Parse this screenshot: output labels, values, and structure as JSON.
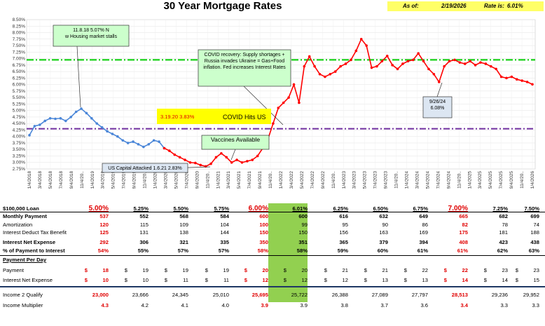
{
  "header": {
    "title": "30 Year Mortgage Rates",
    "as_of_label": "As of:",
    "as_of_value": "2/19/2026",
    "rate_label": "Rate is:",
    "rate_value": "6.01%"
  },
  "colors": {
    "blue_series": "#4a86d8",
    "red_series": "#ff0000",
    "green_line": "#00cc00",
    "purple_line": "#7030a0",
    "highlight": "#92d050",
    "callout_fill": "#ccffcc",
    "note_fill": "#ffff00"
  },
  "chart_data": {
    "type": "line",
    "ylim": [
      2.75,
      8.5
    ],
    "yticks": [
      "2.75%",
      "3.00%",
      "3.25%",
      "3.50%",
      "3.75%",
      "4.00%",
      "4.25%",
      "4.50%",
      "4.75%",
      "5.00%",
      "5.25%",
      "5.50%",
      "5.75%",
      "6.00%",
      "6.25%",
      "6.50%",
      "6.75%",
      "7.00%",
      "7.25%",
      "7.50%",
      "7.75%",
      "8.00%",
      "8.25%",
      "8.50%"
    ],
    "xticks": [
      "1/4/2018",
      "3/4/2018",
      "5/4/2018",
      "7/4/2018",
      "9/4/2018",
      "11/4/20..",
      "1/4/2019",
      "3/4/2019",
      "5/4/2019",
      "7/4/2019",
      "9/4/2019",
      "11/4/20..",
      "1/4/2020",
      "3/4/2020",
      "5/4/2020",
      "7/4/2020",
      "9/4/2020",
      "11/4/20..",
      "1/4/2021",
      "3/4/2021",
      "5/4/2021",
      "7/4/2021",
      "9/4/2021",
      "11/4/20..",
      "1/4/2022",
      "3/4/2022",
      "5/4/2022",
      "7/4/2022",
      "9/4/2022",
      "11/4/20..",
      "1/4/2023",
      "3/4/2023",
      "5/4/2023",
      "7/4/2023",
      "9/4/2023",
      "11/4/20..",
      "1/4/2024",
      "3/4/2024",
      "5/4/2024",
      "7/4/2024",
      "9/4/2024",
      "11/4/20..",
      "1/4/2025",
      "3/4/2025",
      "5/4/2025",
      "7/4/2025",
      "9/4/2025",
      "11/4/20..",
      "1/4/2026"
    ],
    "series": [
      {
        "color": "blue",
        "x": [
          0,
          1,
          2,
          3,
          4,
          5,
          6,
          7,
          8,
          9,
          10,
          11,
          12,
          13,
          14,
          15,
          16,
          17,
          18,
          19,
          20,
          21,
          22,
          23,
          24,
          25,
          26
        ],
        "y": [
          4.05,
          4.4,
          4.45,
          4.6,
          4.7,
          4.68,
          4.7,
          4.6,
          4.75,
          4.95,
          5.07,
          4.9,
          4.7,
          4.5,
          4.35,
          4.2,
          4.1,
          4.0,
          3.85,
          3.75,
          3.8,
          3.7,
          3.6,
          3.7,
          3.85,
          3.8,
          3.55
        ]
      },
      {
        "color": "red",
        "x": [
          26,
          27,
          28,
          29,
          30,
          31,
          32,
          33,
          34,
          35,
          36,
          37,
          38,
          39,
          40,
          41,
          42,
          43,
          44,
          45,
          46,
          47,
          48,
          49,
          50,
          51,
          52,
          53,
          54,
          55,
          56,
          57,
          58,
          59,
          60,
          61,
          62,
          63,
          64,
          65,
          66,
          67,
          68,
          69,
          70,
          71,
          72,
          73,
          74,
          75,
          76,
          77,
          78,
          79,
          80,
          81,
          82,
          83,
          84,
          85,
          86,
          87,
          88,
          89,
          90,
          91,
          92,
          93,
          94,
          95,
          96,
          97
        ],
        "y": [
          3.55,
          3.45,
          3.3,
          3.2,
          3.1,
          3.0,
          2.98,
          2.9,
          2.85,
          2.95,
          3.2,
          3.35,
          3.2,
          3.0,
          3.1,
          3.0,
          3.05,
          3.1,
          3.25,
          3.55,
          3.9,
          4.5,
          5.1,
          5.3,
          5.5,
          6.0,
          5.3,
          6.7,
          7.08,
          6.7,
          6.4,
          6.3,
          6.4,
          6.5,
          6.7,
          6.8,
          6.95,
          7.3,
          7.75,
          7.5,
          6.65,
          6.7,
          6.9,
          7.1,
          6.75,
          6.6,
          6.8,
          6.9,
          6.95,
          7.2,
          6.9,
          6.6,
          6.4,
          6.1,
          6.7,
          6.9,
          6.95,
          6.85,
          6.8,
          6.9,
          6.75,
          6.85,
          6.8,
          6.7,
          6.6,
          6.3,
          6.25,
          6.3,
          6.2,
          6.15,
          6.1,
          6.01
        ]
      }
    ],
    "reference_lines": [
      {
        "label": "",
        "y": 6.95,
        "color": "green"
      },
      {
        "label": "",
        "y": 4.3,
        "color": "purple"
      }
    ],
    "annotations": [
      {
        "text": "11.8.18 5.07% New Housing market stalls"
      },
      {
        "text": "COVID recovery: Supply shortages + Russia invades Ukraine = Gas+Food inflation. Fed increases Interest Rates"
      },
      {
        "text": "3.19.20 3.83%"
      },
      {
        "text": "COVID Hits US"
      },
      {
        "text": "Vaccines Available"
      },
      {
        "text": "US Capital Attacked 1.6.21 2.83%"
      },
      {
        "text": "9/26/24 6.08%"
      }
    ]
  },
  "table": {
    "loan_label": "$100,000 Loan",
    "rates": [
      "5.00%",
      "5.25%",
      "5.50%",
      "5.75%",
      "6.00%",
      "6.01%",
      "6.25%",
      "6.50%",
      "6.75%",
      "7.00%",
      "7.25%",
      "7.50%"
    ],
    "rows": [
      {
        "label": "Monthly Payment",
        "bold": true,
        "values": [
          "537",
          "552",
          "568",
          "584",
          "600",
          "600",
          "616",
          "632",
          "649",
          "665",
          "682",
          "699"
        ]
      },
      {
        "label": "Amortization",
        "bold": false,
        "values": [
          "120",
          "115",
          "109",
          "104",
          "100",
          "99",
          "95",
          "90",
          "86",
          "82",
          "78",
          "74"
        ]
      },
      {
        "label": "Interest Deduct Tax Benefit",
        "bold": false,
        "values": [
          "125",
          "131",
          "138",
          "144",
          "150",
          "150",
          "156",
          "163",
          "169",
          "175",
          "181",
          "188"
        ]
      },
      {
        "label": "Interest Net Expense",
        "bold": true,
        "values": [
          "292",
          "306",
          "321",
          "335",
          "350",
          "351",
          "365",
          "379",
          "394",
          "408",
          "423",
          "438"
        ]
      },
      {
        "label": "% of Payment to Interest",
        "bold": true,
        "values": [
          "54%",
          "55%",
          "57%",
          "57%",
          "58%",
          "58%",
          "59%",
          "60%",
          "61%",
          "61%",
          "62%",
          "63%"
        ]
      }
    ],
    "per_day_label": "Payment Per Day",
    "per_day_rows": [
      {
        "label": "Payment",
        "values": [
          "18",
          "19",
          "19",
          "19",
          "20",
          "20",
          "21",
          "21",
          "22",
          "22",
          "23",
          "23"
        ]
      },
      {
        "label": "Interest Net Expense",
        "values": [
          "10",
          "10",
          "11",
          "11",
          "12",
          "12",
          "12",
          "13",
          "13",
          "14",
          "14",
          "15"
        ]
      }
    ],
    "dollar": "$",
    "income_rows": [
      {
        "label": "Income 2 Qualify",
        "values": [
          "23,000",
          "23,666",
          "24,345",
          "25,010",
          "25,695",
          "25,722",
          "26,388",
          "27,089",
          "27,797",
          "28,513",
          "29,236",
          "29,952"
        ]
      },
      {
        "label": "Income Multiplier",
        "values": [
          "4.3",
          "4.2",
          "4.1",
          "4.0",
          "3.9",
          "3.9",
          "3.8",
          "3.7",
          "3.6",
          "3.4",
          "3.3",
          "3.3"
        ]
      }
    ]
  }
}
